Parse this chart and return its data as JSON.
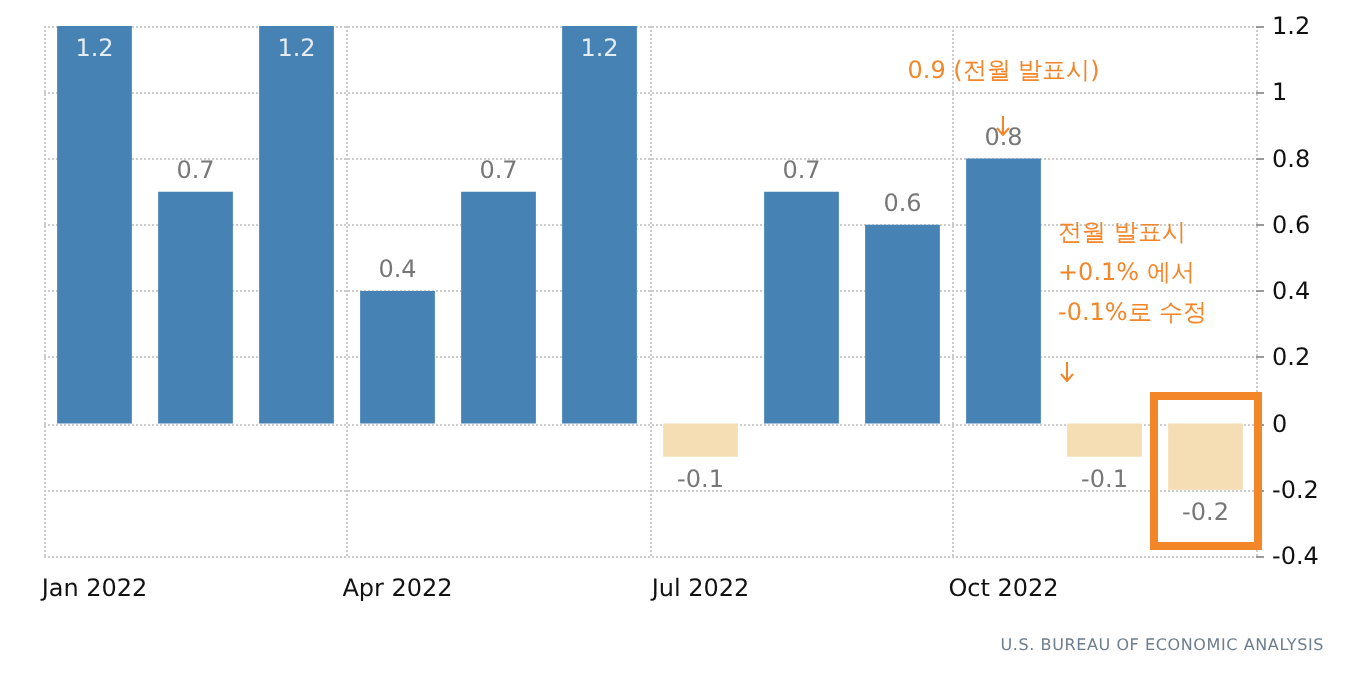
{
  "chart_data": {
    "type": "bar",
    "categories": [
      "Jan 2022",
      null,
      null,
      "Apr 2022",
      null,
      null,
      "Jul 2022",
      null,
      null,
      "Oct 2022",
      null,
      null
    ],
    "values": [
      1.2,
      0.7,
      1.2,
      0.4,
      0.7,
      1.2,
      -0.1,
      0.7,
      0.6,
      0.8,
      -0.1,
      -0.2
    ],
    "colors": [
      "#4682b4",
      "#4682b4",
      "#4682b4",
      "#4682b4",
      "#4682b4",
      "#4682b4",
      "#f5deb3",
      "#4682b4",
      "#4682b4",
      "#4682b4",
      "#f5deb3",
      "#f5deb3"
    ],
    "ylim": [
      -0.4,
      1.2
    ],
    "yticks": [
      -0.4,
      -0.2,
      0,
      0.2,
      0.4,
      0.6,
      0.8,
      1,
      1.2
    ],
    "grid": true,
    "data_labels": true,
    "annotations": [
      "0.9 (전월 발표시)",
      "전월 발표시\n+0.1% 에서\n-0.1%로 수정",
      "U.S. BUREAU OF ECONOMIC ANALYSIS"
    ]
  }
}
